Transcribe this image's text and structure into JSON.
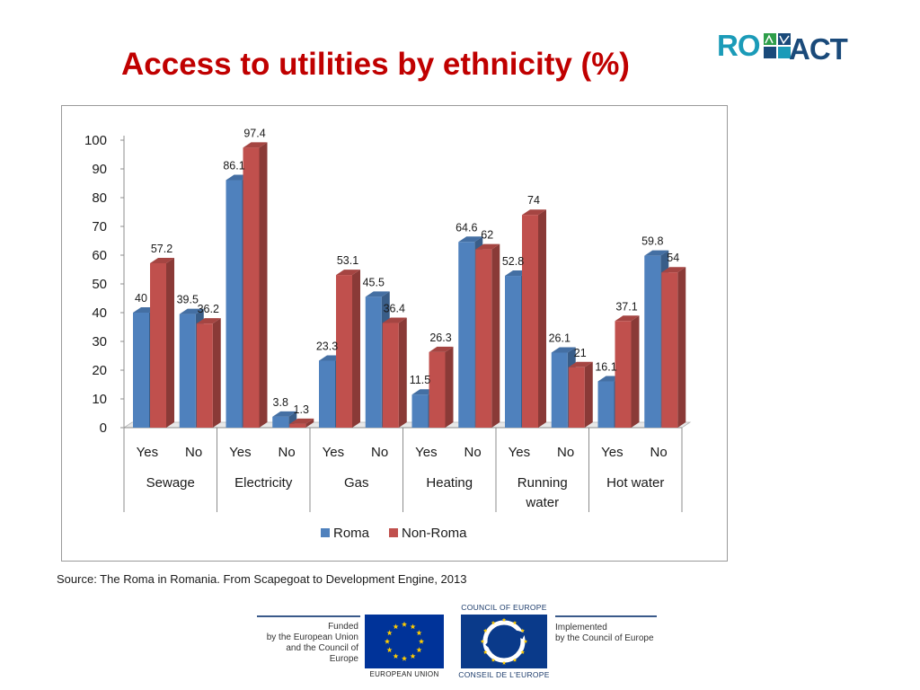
{
  "title": "Access to utilities by ethnicity (%)",
  "logo": {
    "ro": "RO",
    "act": "ACT"
  },
  "source": "Source: The Roma in Romania. From Scapegoat to Development Engine, 2013",
  "footer": {
    "funded": [
      "Funded",
      "by the European Union",
      "and the Council of Europe"
    ],
    "eu_caption": "EUROPEAN UNION",
    "coe_top": "COUNCIL OF EUROPE",
    "coe_bottom": "CONSEIL DE L'EUROPE",
    "implemented": [
      "Implemented",
      "by the Council of Europe"
    ]
  },
  "colors": {
    "roma": "#4f81bd",
    "non_roma": "#c0504d",
    "title": "#c00000"
  },
  "chart_data": {
    "type": "bar",
    "groups": [
      "Sewage",
      "Electricity",
      "Gas",
      "Heating",
      "Running water",
      "Hot water"
    ],
    "group_labels": [
      [
        "Sewage"
      ],
      [
        "Electricity"
      ],
      [
        "Gas"
      ],
      [
        "Heating"
      ],
      [
        "Running",
        "water"
      ],
      [
        "Hot water"
      ]
    ],
    "subcategories": [
      "Yes",
      "No"
    ],
    "series": [
      {
        "name": "Roma",
        "values": [
          40,
          39.5,
          86.1,
          3.8,
          23.3,
          45.5,
          11.5,
          64.6,
          52.8,
          26.1,
          16.1,
          59.8
        ]
      },
      {
        "name": "Non-Roma",
        "values": [
          57.2,
          36.2,
          97.4,
          1.3,
          53.1,
          36.4,
          26.3,
          62,
          74,
          21,
          37.1,
          54
        ]
      }
    ],
    "yticks": [
      0,
      10,
      20,
      30,
      40,
      50,
      60,
      70,
      80,
      90,
      100
    ],
    "ylim": [
      0,
      100
    ],
    "legend_position": "bottom"
  }
}
